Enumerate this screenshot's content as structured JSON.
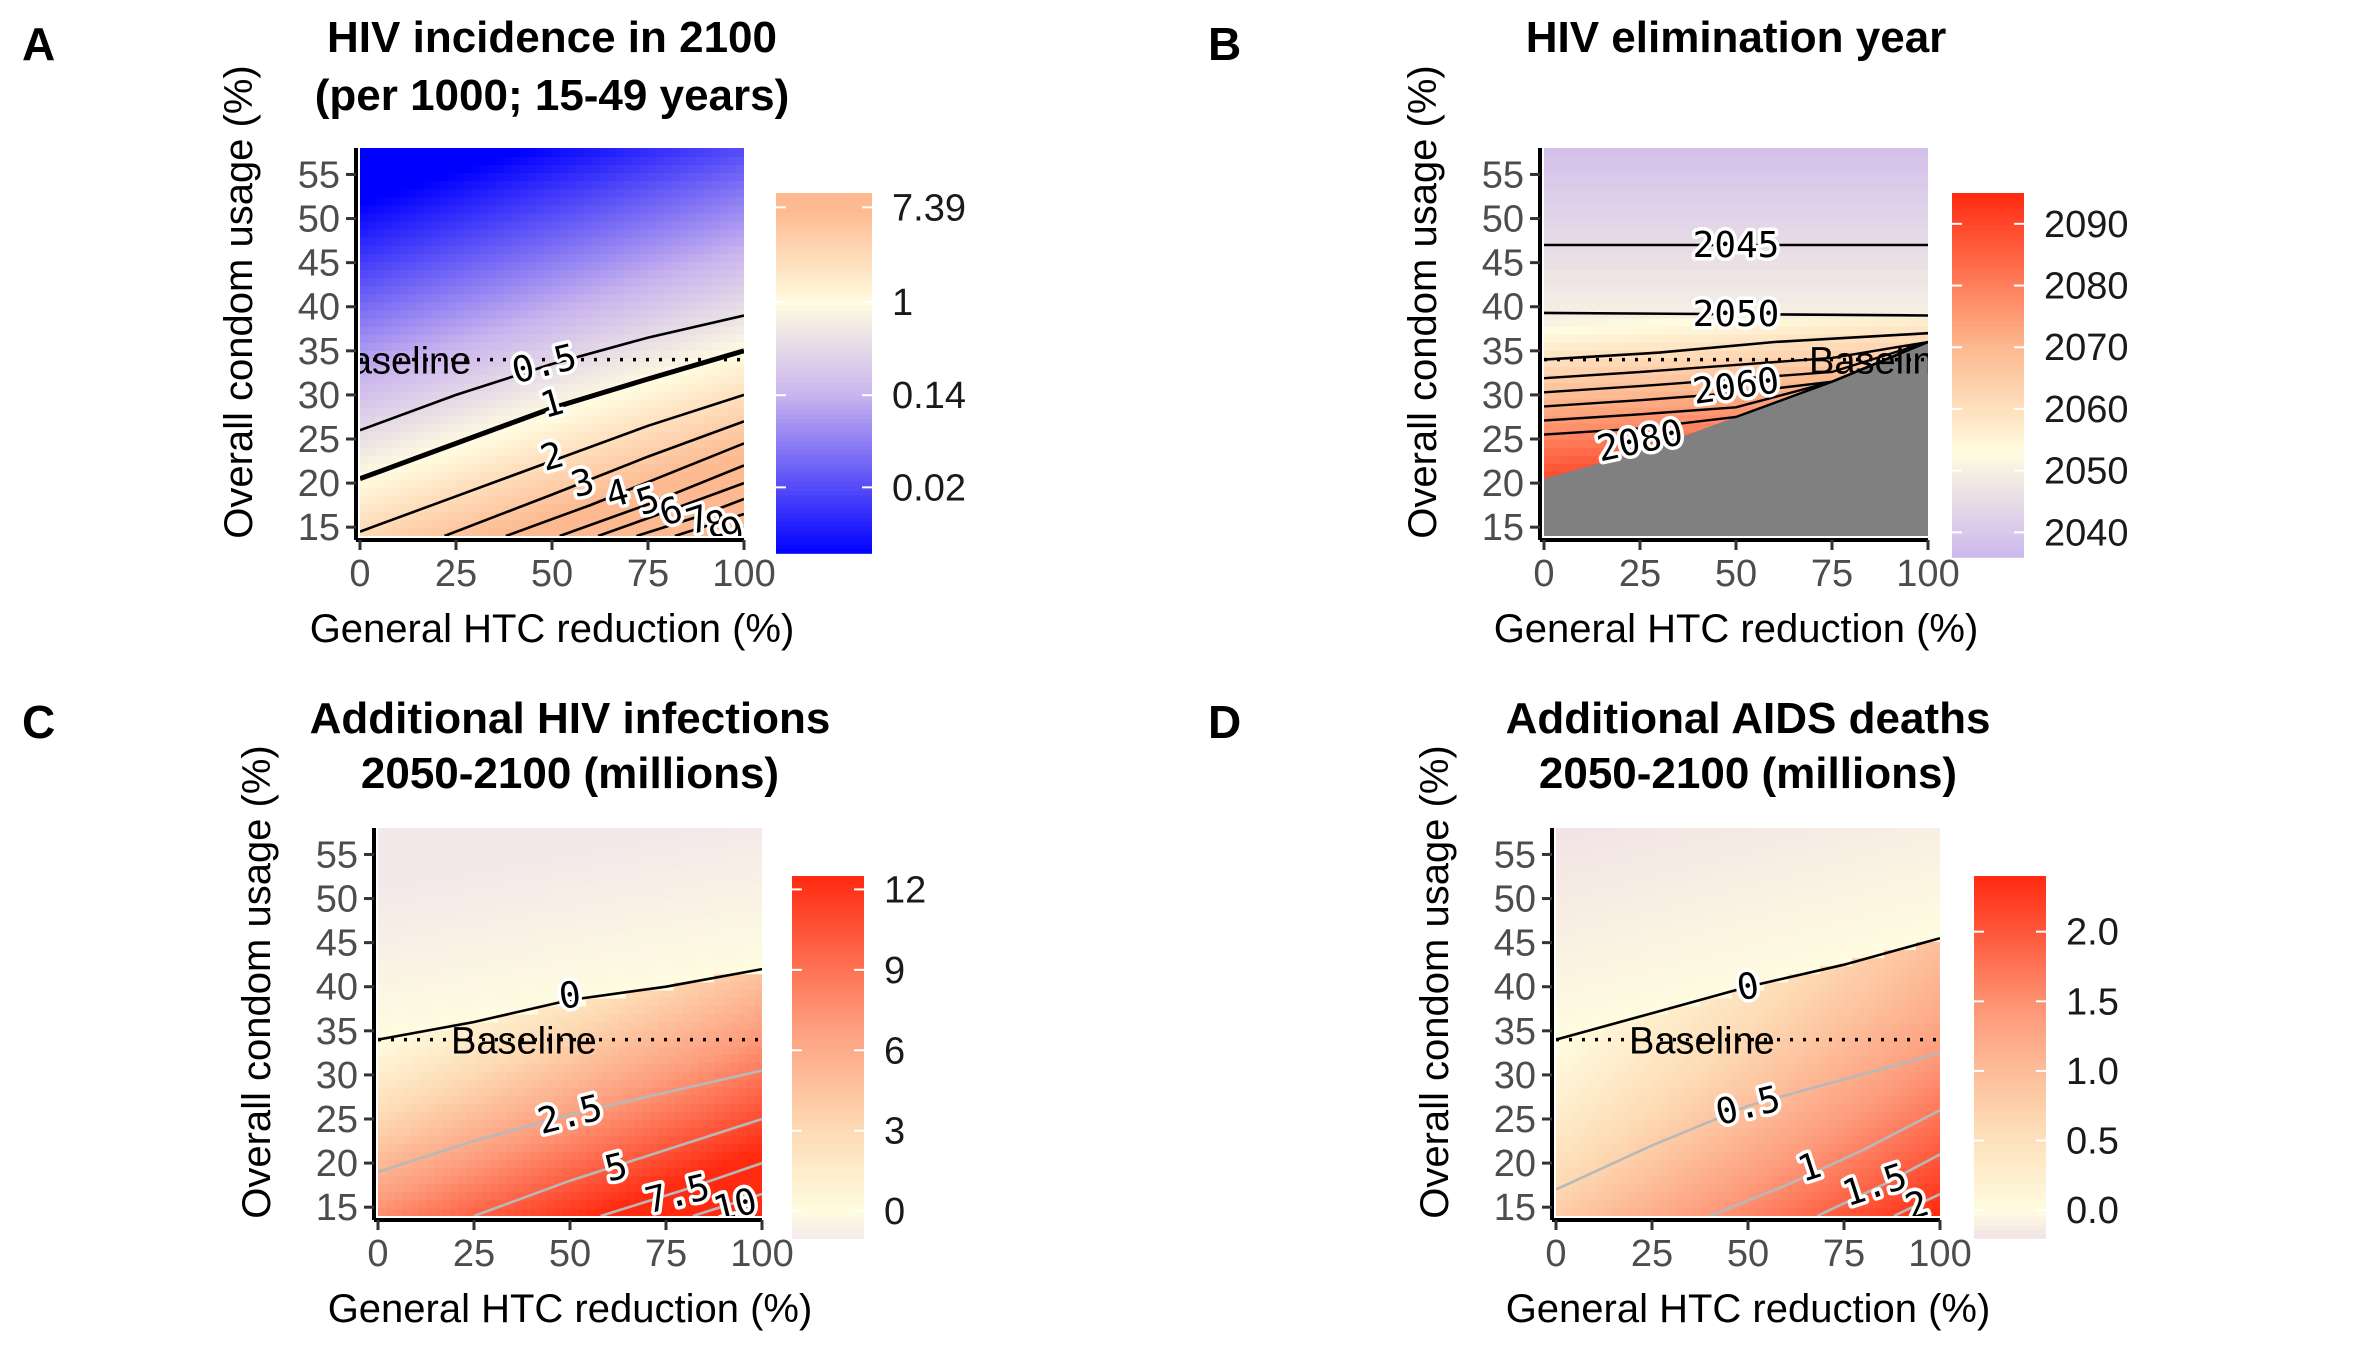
{
  "chart_data": [
    {
      "type": "heatmap",
      "panel": "A",
      "title": [
        "HIV incidence in 2100",
        "(per 1000; 15-49 years)"
      ],
      "xlabel": "General HTC reduction (%)",
      "ylabel": "Overall condom usage (%)",
      "x_ticks": [
        "0",
        "25",
        "50",
        "75",
        "100"
      ],
      "y_ticks": [
        "15",
        "20",
        "25",
        "30",
        "35",
        "40",
        "45",
        "50",
        "55"
      ],
      "xlim": [
        0,
        100
      ],
      "ylim": [
        14,
        58
      ],
      "color_scale": "log",
      "color_stops": [
        {
          "value": 0.005,
          "color": "#0000ff"
        },
        {
          "value": 0.14,
          "color": "#c9b3ee"
        },
        {
          "value": 1,
          "color": "#fffce0"
        },
        {
          "value": 7.39,
          "color": "#fdb98f"
        }
      ],
      "legend_ticks": [
        "7.39",
        "1",
        "0.14",
        "0.02"
      ],
      "baseline": {
        "y": 34,
        "label": "Baseline"
      },
      "contours": [
        {
          "level": "0.5",
          "points": [
            [
              0,
              26
            ],
            [
              25,
              30
            ],
            [
              50,
              33.5
            ],
            [
              75,
              36.5
            ],
            [
              100,
              39
            ]
          ],
          "label_at": [
            48,
            33.5
          ],
          "label_angle": -14
        },
        {
          "level": "1",
          "bold": true,
          "points": [
            [
              0,
              20.5
            ],
            [
              25,
              24.5
            ],
            [
              50,
              28.5
            ],
            [
              75,
              31.8
            ],
            [
              100,
              35
            ]
          ],
          "label_at": [
            50,
            29
          ],
          "label_angle": -16
        },
        {
          "level": "2",
          "points": [
            [
              0,
              14.5
            ],
            [
              25,
              18.5
            ],
            [
              50,
              22.5
            ],
            [
              75,
              26.5
            ],
            [
              100,
              30
            ]
          ],
          "label_at": [
            50,
            23
          ],
          "label_angle": -16
        },
        {
          "level": "3",
          "points": [
            [
              22,
              14
            ],
            [
              50,
              18.7
            ],
            [
              75,
              23
            ],
            [
              100,
              27
            ]
          ],
          "label_at": [
            58,
            20
          ],
          "label_angle": -16
        },
        {
          "level": "4",
          "points": [
            [
              38,
              14
            ],
            [
              60,
              17.5
            ],
            [
              80,
              21
            ],
            [
              100,
              24.5
            ]
          ],
          "label_at": [
            67,
            18.8
          ],
          "label_angle": -16
        },
        {
          "level": "5",
          "points": [
            [
              52,
              14
            ],
            [
              75,
              17.6
            ],
            [
              100,
              22
            ]
          ],
          "label_at": [
            75,
            18
          ],
          "label_angle": -18
        },
        {
          "level": "6",
          "points": [
            [
              62,
              14
            ],
            [
              80,
              16.8
            ],
            [
              100,
              20
            ]
          ],
          "label_at": [
            81,
            16.8
          ],
          "label_angle": -18
        },
        {
          "level": "7",
          "points": [
            [
              72,
              14
            ],
            [
              88,
              16.2
            ],
            [
              100,
              18.2
            ]
          ],
          "label_at": [
            88,
            15.8
          ],
          "label_angle": -18
        },
        {
          "level": "8",
          "points": [
            [
              82,
              14
            ],
            [
              100,
              16.5
            ]
          ],
          "label_at": [
            93,
            15.3
          ],
          "label_angle": -18
        },
        {
          "level": "9",
          "points": [
            [
              92,
              14
            ],
            [
              100,
              15
            ]
          ],
          "label_at": [
            97,
            14.6
          ],
          "label_angle": -18
        }
      ]
    },
    {
      "type": "heatmap",
      "panel": "B",
      "title": [
        "HIV elimination year"
      ],
      "xlabel": "General HTC reduction (%)",
      "ylabel": "Overall condom usage (%)",
      "x_ticks": [
        "0",
        "25",
        "50",
        "75",
        "100"
      ],
      "y_ticks": [
        "15",
        "20",
        "25",
        "30",
        "35",
        "40",
        "45",
        "50",
        "55"
      ],
      "xlim": [
        0,
        100
      ],
      "ylim": [
        14,
        58
      ],
      "color_scale": "linear",
      "color_stops": [
        {
          "value": 2035,
          "color": "#c9b3ee"
        },
        {
          "value": 2053,
          "color": "#fffce0"
        },
        {
          "value": 2070,
          "color": "#fdb98f"
        },
        {
          "value": 2095,
          "color": "#ff2a10"
        }
      ],
      "legend_ticks": [
        "2090",
        "2080",
        "2070",
        "2060",
        "2050",
        "2040"
      ],
      "not_eliminated_color": "#808080",
      "gray_boundary": [
        [
          0,
          20.5
        ],
        [
          25,
          23.5
        ],
        [
          50,
          27.5
        ],
        [
          75,
          31.5
        ],
        [
          100,
          36
        ]
      ],
      "baseline": {
        "y": 34,
        "label": "Baseline"
      },
      "contours": [
        {
          "level": "2045",
          "points": [
            [
              0,
              47
            ],
            [
              100,
              47
            ]
          ],
          "label_at": [
            50,
            47
          ],
          "label_angle": 0
        },
        {
          "level": "2050",
          "points": [
            [
              0,
              39.3
            ],
            [
              100,
              39
            ]
          ],
          "label_at": [
            50,
            39.2
          ],
          "label_angle": 0
        },
        {
          "level": "2060",
          "points": [
            [
              0,
              34
            ],
            [
              30,
              34.8
            ],
            [
              60,
              36
            ],
            [
              100,
              37
            ]
          ],
          "label_at": [
            50,
            31
          ],
          "label_angle": -8
        }
      ]
    },
    {
      "type": "heatmap",
      "panel": "C",
      "title": [
        "Additional HIV infections",
        "2050-2100 (millions)"
      ],
      "xlabel": "General HTC reduction (%)",
      "ylabel": "Overall condom usage (%)",
      "x_ticks": [
        "0",
        "25",
        "50",
        "75",
        "100"
      ],
      "y_ticks": [
        "15",
        "20",
        "25",
        "30",
        "35",
        "40",
        "45",
        "50",
        "55"
      ],
      "xlim": [
        0,
        100
      ],
      "ylim": [
        14,
        58
      ],
      "color_scale": "linear",
      "color_stops": [
        {
          "value": -1,
          "color": "#f4e9e9"
        },
        {
          "value": 0,
          "color": "#fffce0"
        },
        {
          "value": 3,
          "color": "#fddcb5"
        },
        {
          "value": 7,
          "color": "#fd9c7c"
        },
        {
          "value": 12.5,
          "color": "#ff2a10"
        }
      ],
      "legend_ticks": [
        "12",
        "9",
        "6",
        "3",
        "0"
      ],
      "baseline": {
        "y": 34,
        "label": "Baseline"
      },
      "contours": [
        {
          "level": "0",
          "color": "#000000",
          "points": [
            [
              0,
              34
            ],
            [
              25,
              36
            ],
            [
              50,
              38.5
            ],
            [
              75,
              40
            ],
            [
              100,
              42
            ]
          ],
          "label_at": [
            50,
            39
          ],
          "label_angle": -8
        },
        {
          "level": "2.5",
          "color": "#b8b8b8",
          "points": [
            [
              0,
              19
            ],
            [
              25,
              22.5
            ],
            [
              50,
              25.5
            ],
            [
              75,
              28
            ],
            [
              100,
              30.5
            ]
          ],
          "label_at": [
            50,
            25.5
          ],
          "label_angle": -14
        },
        {
          "level": "5",
          "color": "#b8b8b8",
          "points": [
            [
              25,
              14
            ],
            [
              50,
              18
            ],
            [
              75,
              21.5
            ],
            [
              100,
              25
            ]
          ],
          "label_at": [
            62,
            19.5
          ],
          "label_angle": -14
        },
        {
          "level": "7.5",
          "color": "#b8b8b8",
          "points": [
            [
              58,
              14
            ],
            [
              80,
              17
            ],
            [
              100,
              20
            ]
          ],
          "label_at": [
            78,
            16.5
          ],
          "label_angle": -14
        },
        {
          "level": "10",
          "color": "#b8b8b8",
          "points": [
            [
              82,
              14
            ],
            [
              100,
              16.5
            ]
          ],
          "label_at": [
            93,
            15.2
          ],
          "label_angle": -14
        }
      ]
    },
    {
      "type": "heatmap",
      "panel": "D",
      "title": [
        "Additional AIDS deaths",
        "2050-2100 (millions)"
      ],
      "xlabel": "General HTC reduction (%)",
      "ylabel": "Overall condom usage (%)",
      "x_ticks": [
        "0",
        "25",
        "50",
        "75",
        "100"
      ],
      "y_ticks": [
        "15",
        "20",
        "25",
        "30",
        "35",
        "40",
        "45",
        "50",
        "55"
      ],
      "xlim": [
        0,
        100
      ],
      "ylim": [
        14,
        58
      ],
      "color_scale": "linear",
      "color_stops": [
        {
          "value": -0.2,
          "color": "#f1e2e6"
        },
        {
          "value": 0,
          "color": "#fffce0"
        },
        {
          "value": 0.6,
          "color": "#fddcb5"
        },
        {
          "value": 1.4,
          "color": "#fd9c7c"
        },
        {
          "value": 2.4,
          "color": "#ff2a10"
        }
      ],
      "legend_ticks": [
        "2.0",
        "1.5",
        "1.0",
        "0.5",
        "0.0"
      ],
      "baseline": {
        "y": 34,
        "label": "Baseline"
      },
      "contours": [
        {
          "level": "0",
          "color": "#000000",
          "points": [
            [
              0,
              34
            ],
            [
              25,
              37
            ],
            [
              50,
              40
            ],
            [
              75,
              42.5
            ],
            [
              100,
              45.5
            ]
          ],
          "label_at": [
            50,
            40
          ],
          "label_angle": -10
        },
        {
          "level": "0.5",
          "color": "#b8b8b8",
          "points": [
            [
              0,
              17
            ],
            [
              25,
              22
            ],
            [
              50,
              26.5
            ],
            [
              75,
              29.5
            ],
            [
              100,
              32.5
            ]
          ],
          "label_at": [
            50,
            26.5
          ],
          "label_angle": -14
        },
        {
          "level": "1",
          "color": "#b8b8b8",
          "points": [
            [
              40,
              14
            ],
            [
              60,
              17.5
            ],
            [
              80,
              21.5
            ],
            [
              100,
              26
            ]
          ],
          "label_at": [
            66,
            19.5
          ],
          "label_angle": -18
        },
        {
          "level": "1.5",
          "color": "#b8b8b8",
          "points": [
            [
              68,
              14
            ],
            [
              85,
              17.5
            ],
            [
              100,
              21
            ]
          ],
          "label_at": [
            83,
            17.5
          ],
          "label_angle": -18
        },
        {
          "level": "2",
          "color": "#b8b8b8",
          "points": [
            [
              88,
              14
            ],
            [
              100,
              16.5
            ]
          ],
          "label_at": [
            94,
            15.2
          ],
          "label_angle": -18
        }
      ]
    }
  ]
}
